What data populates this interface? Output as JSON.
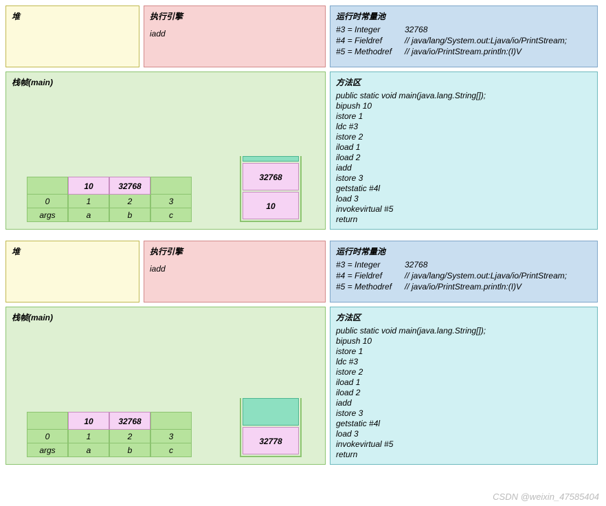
{
  "labels": {
    "heap": "堆",
    "engine": "执行引擎",
    "pool": "运行时常量池",
    "stack": "栈帧(main)",
    "method": "方法区"
  },
  "engine_instr": "iadd",
  "pool": [
    {
      "k": "#3 = Integer",
      "v": "32768"
    },
    {
      "k": "#4 = Fieldref",
      "v": "// java/lang/System.out:Ljava/io/PrintStream;"
    },
    {
      "k": "#5 = Methodref",
      "v": "// java/io/PrintStream.println:(I)V"
    }
  ],
  "method_lines": [
    "public static void main(java.lang.String[]);",
    "bipush 10",
    "istore 1",
    "ldc #3",
    "istore 2",
    "iload 1",
    "iload 2",
    "iadd",
    "istore 3",
    "getstatic #4l",
    "load 3",
    "invokevirtual #5",
    "return"
  ],
  "lvt": {
    "slots": [
      {
        "idx": "0",
        "name": "args",
        "value": "0",
        "has_value": false
      },
      {
        "idx": "1",
        "name": "a",
        "value": "10",
        "has_value": true
      },
      {
        "idx": "2",
        "name": "b",
        "value": "32768",
        "has_value": true
      },
      {
        "idx": "3",
        "name": "c",
        "value": "",
        "has_value": false
      }
    ]
  },
  "frames": [
    {
      "operand_stack": {
        "thin": true,
        "cells": [
          {
            "v": "32768",
            "cls": "os-pink"
          },
          {
            "v": "10",
            "cls": "os-pink"
          }
        ]
      }
    },
    {
      "operand_stack": {
        "thin": false,
        "cells": [
          {
            "v": "",
            "cls": "os-green"
          },
          {
            "v": "32778",
            "cls": "os-pink"
          }
        ]
      }
    }
  ],
  "watermark": "CSDN @weixin_47585404",
  "colors": {
    "heap_bg": "#fdfadb",
    "heap_border": "#c0b84e",
    "engine_bg": "#f8d3d3",
    "engine_border": "#d38a8a",
    "pool_bg": "#c9def0",
    "pool_border": "#7ea6c9",
    "stack_bg": "#def0d2",
    "stack_border": "#8cc470",
    "method_bg": "#d1f1f3",
    "method_border": "#6db9bd",
    "pink": "#f6d3f4",
    "pink_border": "#c78dc0",
    "green_light": "#b7e39d",
    "teal": "#8de0c1",
    "teal_border": "#4db590"
  }
}
